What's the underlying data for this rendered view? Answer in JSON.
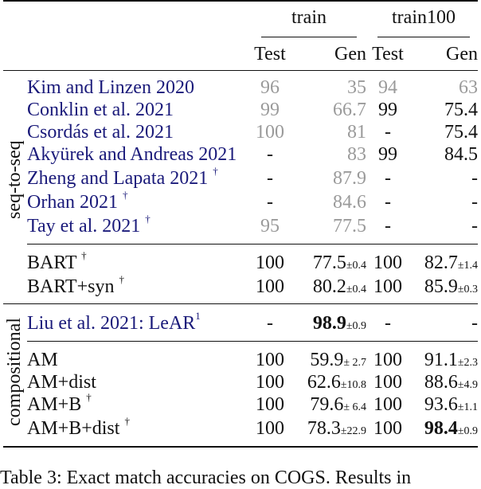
{
  "header": {
    "group1": "train",
    "group2": "train100",
    "cols": [
      "Test",
      "Gen",
      "Test",
      "Gen"
    ]
  },
  "section_labels": {
    "seq": "seq-to-seq",
    "comp": "compositional"
  },
  "rows": [
    {
      "name": "Kim and Linzen 2020",
      "sup": "",
      "t1": "96",
      "g1": "35",
      "g1pm": "",
      "t2": "94",
      "g2": "63",
      "g2pm": ""
    },
    {
      "name": "Conklin et al. 2021",
      "sup": "",
      "t1": "99",
      "g1": "66.7",
      "g1pm": "",
      "t2": "99",
      "g2": "75.4",
      "g2pm": ""
    },
    {
      "name": "Csordás et al. 2021",
      "sup": "",
      "t1": "100",
      "g1": "81",
      "g1pm": "",
      "t2": "-",
      "g2": "75.4",
      "g2pm": ""
    },
    {
      "name": "Akyürek and Andreas 2021",
      "sup": "",
      "t1": "-",
      "g1": "83",
      "g1pm": "",
      "t2": "99",
      "g2": "84.5",
      "g2pm": ""
    },
    {
      "name": "Zheng and Lapata 2021",
      "sup": "†",
      "t1": "-",
      "g1": "87.9",
      "g1pm": "",
      "t2": "-",
      "g2": "-",
      "g2pm": ""
    },
    {
      "name": "Orhan 2021",
      "sup": "†",
      "t1": "-",
      "g1": "84.6",
      "g1pm": "",
      "t2": "-",
      "g2": "-",
      "g2pm": ""
    },
    {
      "name": "Tay et al. 2021",
      "sup": "†",
      "t1": "95",
      "g1": "77.5",
      "g1pm": "",
      "t2": "-",
      "g2": "-",
      "g2pm": ""
    },
    {
      "name": "BART",
      "sup": "†",
      "t1": "100",
      "g1": "77.5",
      "g1pm": "±0.4",
      "t2": "100",
      "g2": "82.7",
      "g2pm": "±1.4"
    },
    {
      "name": "BART+syn",
      "sup": "†",
      "t1": "100",
      "g1": "80.2",
      "g1pm": "±0.4",
      "t2": "100",
      "g2": "85.9",
      "g2pm": "±0.3"
    },
    {
      "name": "Liu et al. 2021: LeAR",
      "sup": "1",
      "t1": "-",
      "g1": "98.9",
      "g1pm": "±0.9",
      "t2": "-",
      "g2": "-",
      "g2pm": ""
    },
    {
      "name": "AM",
      "sup": "",
      "t1": "100",
      "g1": "59.9",
      "g1pm": "± 2.7",
      "t2": "100",
      "g2": "91.1",
      "g2pm": "±2.3"
    },
    {
      "name": "AM+dist",
      "sup": "",
      "t1": "100",
      "g1": "62.6",
      "g1pm": "±10.8",
      "t2": "100",
      "g2": "88.6",
      "g2pm": "±4.9"
    },
    {
      "name": "AM+B",
      "sup": "†",
      "t1": "100",
      "g1": "79.6",
      "g1pm": "± 6.4",
      "t2": "100",
      "g2": "93.6",
      "g2pm": "±1.1"
    },
    {
      "name": "AM+B+dist",
      "sup": "†",
      "t1": "100",
      "g1": "78.3",
      "g1pm": "±22.9",
      "t2": "100",
      "g2": "98.4",
      "g2pm": "±0.9"
    }
  ],
  "colors": {
    "citation": "#1a1a7a",
    "reported": "#9a9a9a",
    "text": "#111111"
  },
  "caption": "Table 3: Exact match accuracies on COGS. Results in"
}
